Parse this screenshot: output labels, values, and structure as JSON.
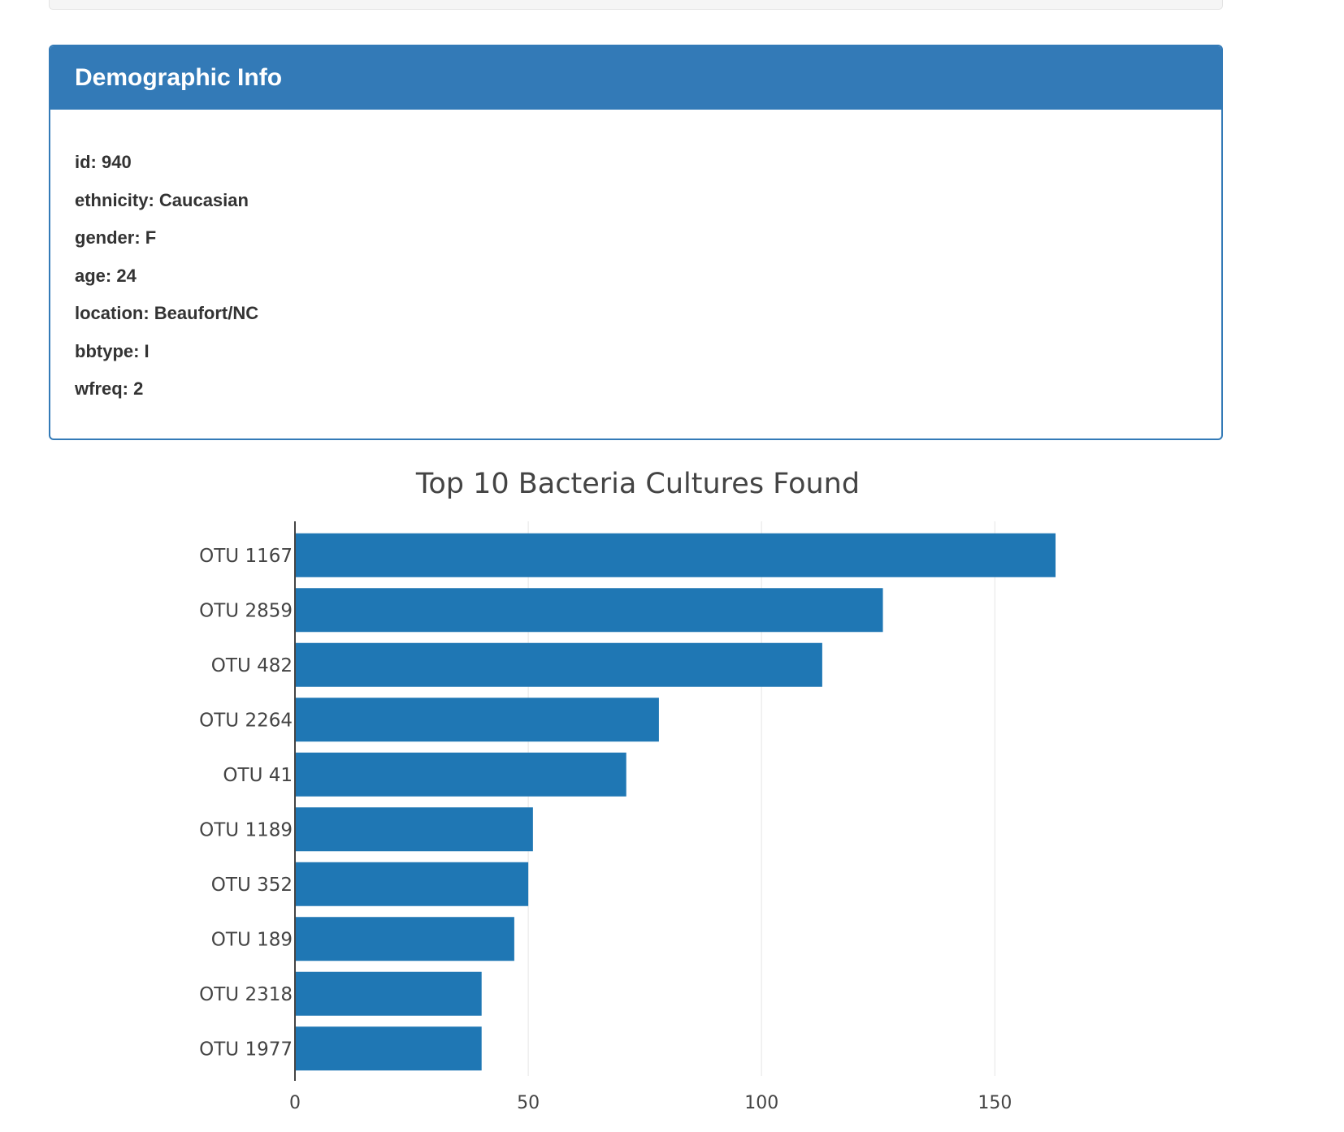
{
  "panel": {
    "title": "Demographic Info",
    "lines": [
      "id: 940",
      "ethnicity: Caucasian",
      "gender: F",
      "age: 24",
      "location: Beaufort/NC",
      "bbtype: I",
      "wfreq: 2"
    ]
  },
  "colors": {
    "panel_primary": "#337ab7",
    "bar": "#1f77b4"
  },
  "chart_data": {
    "type": "bar",
    "orientation": "horizontal",
    "title": "Top 10 Bacteria Cultures Found",
    "xlabel": "",
    "ylabel": "",
    "categories": [
      "OTU 1167",
      "OTU 2859",
      "OTU 482",
      "OTU 2264",
      "OTU 41",
      "OTU 1189",
      "OTU 352",
      "OTU 189",
      "OTU 2318",
      "OTU 1977"
    ],
    "values": [
      163,
      126,
      113,
      78,
      71,
      51,
      50,
      47,
      40,
      40
    ],
    "xlim": [
      0,
      198
    ],
    "xticks": [
      0,
      50,
      100,
      150
    ],
    "grid": true,
    "legend": "none"
  }
}
